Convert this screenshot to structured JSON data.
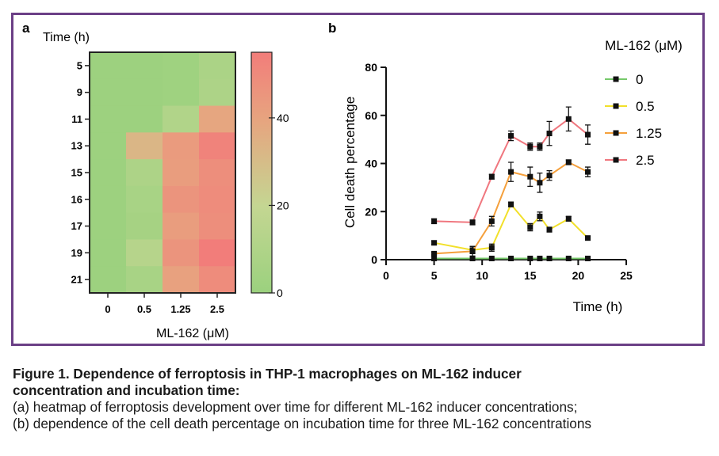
{
  "panels": {
    "a": {
      "letter": "a",
      "row_axis_title": "Time (h)",
      "col_axis_title": "ML-162 (μM)",
      "chart_data": {
        "type": "heatmap",
        "rows": [
          "5",
          "9",
          "11",
          "13",
          "15",
          "16",
          "17",
          "19",
          "21"
        ],
        "columns": [
          "0",
          "0.5",
          "1.25",
          "2.5"
        ],
        "values": [
          [
            1,
            1,
            2,
            7
          ],
          [
            1,
            1,
            2,
            8
          ],
          [
            1,
            1,
            10,
            36
          ],
          [
            1,
            30,
            41,
            52
          ],
          [
            1,
            8,
            40,
            47
          ],
          [
            1,
            6,
            44,
            48
          ],
          [
            1,
            5,
            40,
            47
          ],
          [
            1,
            12,
            44,
            55
          ],
          [
            1,
            6,
            38,
            48
          ]
        ],
        "colorbar": {
          "min": 0,
          "max": 55,
          "ticks": [
            "0",
            "20",
            "40"
          ],
          "colors": [
            "#9bd17e",
            "#c4d692",
            "#e7a47f",
            "#f27d7a"
          ]
        }
      }
    },
    "b": {
      "letter": "b",
      "chart_data": {
        "type": "line",
        "xlabel": "Time (h)",
        "ylabel": "Cell death percentage",
        "xlim": [
          0,
          25
        ],
        "ylim": [
          0,
          80
        ],
        "xticks": [
          "0",
          "5",
          "10",
          "15",
          "20",
          "25"
        ],
        "yticks": [
          "0",
          "20",
          "40",
          "60",
          "80"
        ],
        "x": [
          5,
          9,
          11,
          13,
          15,
          16,
          17,
          19,
          21
        ],
        "legend_title": "ML-162 (μM)",
        "series": [
          {
            "name": "0",
            "color": "#76c96a",
            "values": [
              0.5,
              0.5,
              0.5,
              0.5,
              0.5,
              0.5,
              0.5,
              0.5,
              0.5
            ],
            "errors": [
              0,
              0,
              0,
              0,
              0,
              0,
              0,
              0,
              0
            ]
          },
          {
            "name": "0.5",
            "color": "#f2e02a",
            "values": [
              7,
              4,
              5,
              23,
              13.5,
              18,
              12.5,
              17,
              9
            ],
            "errors": [
              0.8,
              1.5,
              1.5,
              1,
              1.5,
              1.8,
              1,
              1,
              0.8
            ]
          },
          {
            "name": "1.25",
            "color": "#f5a03c",
            "values": [
              2.5,
              3.5,
              16,
              36.5,
              34.5,
              32,
              35,
              40.5,
              36.5
            ],
            "errors": [
              0.5,
              2,
              2,
              4,
              4,
              4,
              2,
              1,
              2
            ]
          },
          {
            "name": "2.5",
            "color": "#f0777f",
            "values": [
              16,
              15.5,
              34.5,
              51.5,
              47,
              47,
              52.5,
              58.5,
              52
            ],
            "errors": [
              1,
              1,
              1,
              2,
              1.5,
              1.5,
              5,
              5,
              4
            ]
          }
        ]
      }
    }
  },
  "caption": {
    "title_line1": "Figure 1. Dependence of ferroptosis in THP-1 macrophages on ML-162 inducer",
    "title_line2": "concentration and incubation time:",
    "line_a": "(a) heatmap of ferroptosis development over time for different ML-162 inducer concentrations;",
    "line_b": "(b) dependence of the cell death percentage on incubation time for three ML-162 concentrations"
  }
}
